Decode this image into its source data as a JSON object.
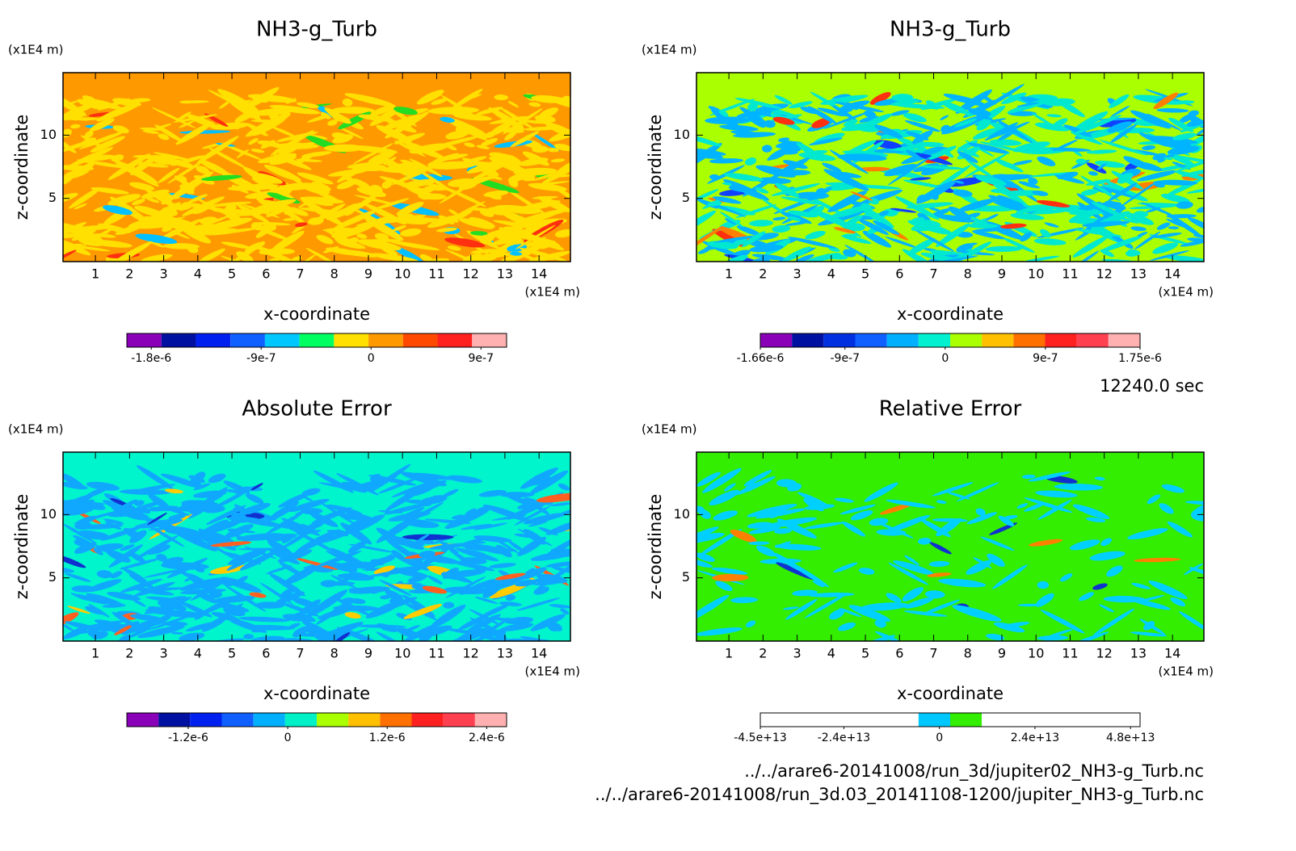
{
  "chart_data": [
    {
      "type": "contour",
      "title": "NH3-g_Turb",
      "x_label": "x-coordinate",
      "y_label": "z-coordinate",
      "x_unit": "(x1E4 m)",
      "y_unit": "(x1E4 m)",
      "xlim": [
        0.05,
        14.92
      ],
      "ylim": [
        0,
        14.94
      ],
      "xticks": [
        1,
        2,
        3,
        4,
        5,
        6,
        7,
        8,
        9,
        10,
        11,
        12,
        13,
        14
      ],
      "yticks": [
        5,
        10
      ],
      "colorbar": {
        "clim": [
          -2e-06,
          1.11e-06
        ],
        "colors": [
          "#8a00b8",
          "#0010a0",
          "#0020f0",
          "#1060ff",
          "#00c8ff",
          "#00ff60",
          "#ffe000",
          "#ff9900",
          "#ff4800",
          "#ff2020",
          "#ffb0b0"
        ],
        "ticks": [
          {
            "value": -1.8e-06,
            "label": "-1.8e-6"
          },
          {
            "value": -9e-07,
            "label": "-9e-7"
          },
          0,
          {
            "value": 9e-07,
            "label": "9e-7"
          }
        ]
      }
    },
    {
      "type": "contour",
      "title": "NH3-g_Turb",
      "x_label": "x-coordinate",
      "y_label": "z-coordinate",
      "x_unit": "(x1E4 m)",
      "y_unit": "(x1E4 m)",
      "xlim": [
        0.05,
        14.92
      ],
      "ylim": [
        0,
        14.94
      ],
      "xticks": [
        1,
        2,
        3,
        4,
        5,
        6,
        7,
        8,
        9,
        10,
        11,
        12,
        13,
        14
      ],
      "yticks": [
        5,
        10
      ],
      "colorbar": {
        "clim": [
          -1.66e-06,
          1.75e-06
        ],
        "colors": [
          "#8a00b8",
          "#0010a0",
          "#0030e0",
          "#1060ff",
          "#00b0ff",
          "#00f0d0",
          "#aaff00",
          "#ffc000",
          "#ff7000",
          "#ff2020",
          "#ff4050",
          "#ffb0b0"
        ],
        "ticks": [
          {
            "value": -1.66e-06,
            "label": "-1.66e-6"
          },
          {
            "value": -9e-07,
            "label": "-9e-7"
          },
          0,
          {
            "value": 9e-07,
            "label": "9e-7"
          },
          {
            "value": 1.75e-06,
            "label": "1.75e-6"
          }
        ]
      }
    },
    {
      "type": "contour",
      "title": "Absolute Error",
      "x_label": "x-coordinate",
      "y_label": "z-coordinate",
      "x_unit": "(x1E4 m)",
      "y_unit": "(x1E4 m)",
      "xlim": [
        0.05,
        14.92
      ],
      "ylim": [
        0,
        14.94
      ],
      "xticks": [
        1,
        2,
        3,
        4,
        5,
        6,
        7,
        8,
        9,
        10,
        11,
        12,
        13,
        14
      ],
      "yticks": [
        5,
        10
      ],
      "colorbar": {
        "clim": [
          -1.94e-06,
          2.64e-06
        ],
        "colors": [
          "#8a00b8",
          "#0010a0",
          "#0020f0",
          "#1060ff",
          "#00b0ff",
          "#00f0c8",
          "#aaff00",
          "#ffc000",
          "#ff7000",
          "#ff2020",
          "#ff4050",
          "#ffb0b0"
        ],
        "ticks": [
          {
            "value": -1.2e-06,
            "label": "-1.2e-6"
          },
          0,
          {
            "value": 1.2e-06,
            "label": "1.2e-6"
          },
          {
            "value": 2.4e-06,
            "label": "2.4e-6"
          }
        ]
      }
    },
    {
      "type": "contour",
      "title": "Relative Error",
      "x_label": "x-coordinate",
      "y_label": "z-coordinate",
      "x_unit": "(x1E4 m)",
      "y_unit": "(x1E4 m)",
      "xlim": [
        0.05,
        14.92
      ],
      "ylim": [
        0,
        14.94
      ],
      "xticks": [
        1,
        2,
        3,
        4,
        5,
        6,
        7,
        8,
        9,
        10,
        11,
        12,
        13,
        14
      ],
      "yticks": [
        5,
        10
      ],
      "colorbar": {
        "clim": [
          -45000000000000.0,
          50400000000000.0
        ],
        "colors": [
          "#ffffff",
          "#ffffff",
          "#ffffff",
          "#ffffff",
          "#ffffff",
          "#00c8ff",
          "#33ee00",
          "#ffffff",
          "#ffffff",
          "#ffffff",
          "#ffffff",
          "#ffffff"
        ],
        "ticks": [
          {
            "value": -45000000000000.0,
            "label": "-4.5e+13"
          },
          {
            "value": -24000000000000.0,
            "label": "-2.4e+13"
          },
          0,
          {
            "value": 24000000000000.0,
            "label": "2.4e+13"
          },
          {
            "value": 48000000000000.0,
            "label": "4.8e+13"
          }
        ]
      }
    }
  ],
  "time_label": "12240.0 sec",
  "files": [
    "../../arare6-20141008/run_3d/jupiter02_NH3-g_Turb.nc",
    "../../arare6-20141008/run_3d.03_20141108-1200/jupiter_NH3-g_Turb.nc"
  ]
}
